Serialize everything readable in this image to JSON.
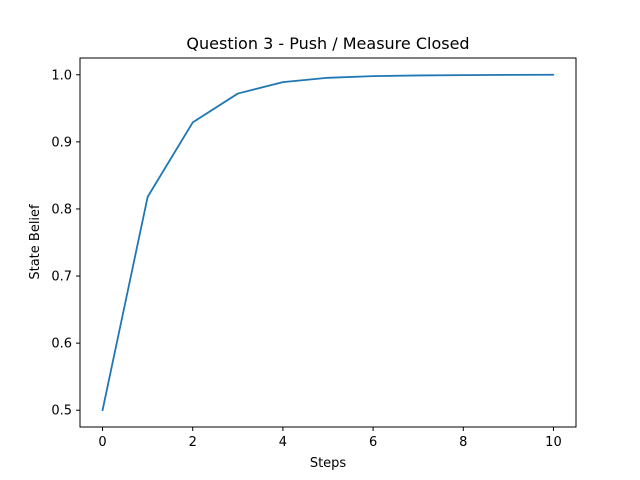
{
  "chart_data": {
    "type": "line",
    "title": "Question 3 - Push / Measure Closed",
    "xlabel": "Steps",
    "ylabel": "State Belief",
    "x": [
      0,
      1,
      2,
      3,
      4,
      5,
      6,
      7,
      8,
      9,
      10
    ],
    "series": [
      {
        "values": [
          0.5,
          0.818,
          0.929,
          0.972,
          0.989,
          0.9955,
          0.998,
          0.999,
          0.9995,
          0.9998,
          1.0
        ],
        "color": "#1f77b4"
      }
    ],
    "xlim": [
      -0.5,
      10.5
    ],
    "ylim": [
      0.475,
      1.025
    ],
    "xticks": [
      0,
      2,
      4,
      6,
      8,
      10
    ],
    "xtick_labels": [
      "0",
      "2",
      "4",
      "6",
      "8",
      "10"
    ],
    "yticks": [
      0.5,
      0.6,
      0.7,
      0.8,
      0.9,
      1.0
    ],
    "ytick_labels": [
      "0.5",
      "0.6",
      "0.7",
      "0.8",
      "0.9",
      "1.0"
    ],
    "grid": false,
    "legend": "none"
  }
}
